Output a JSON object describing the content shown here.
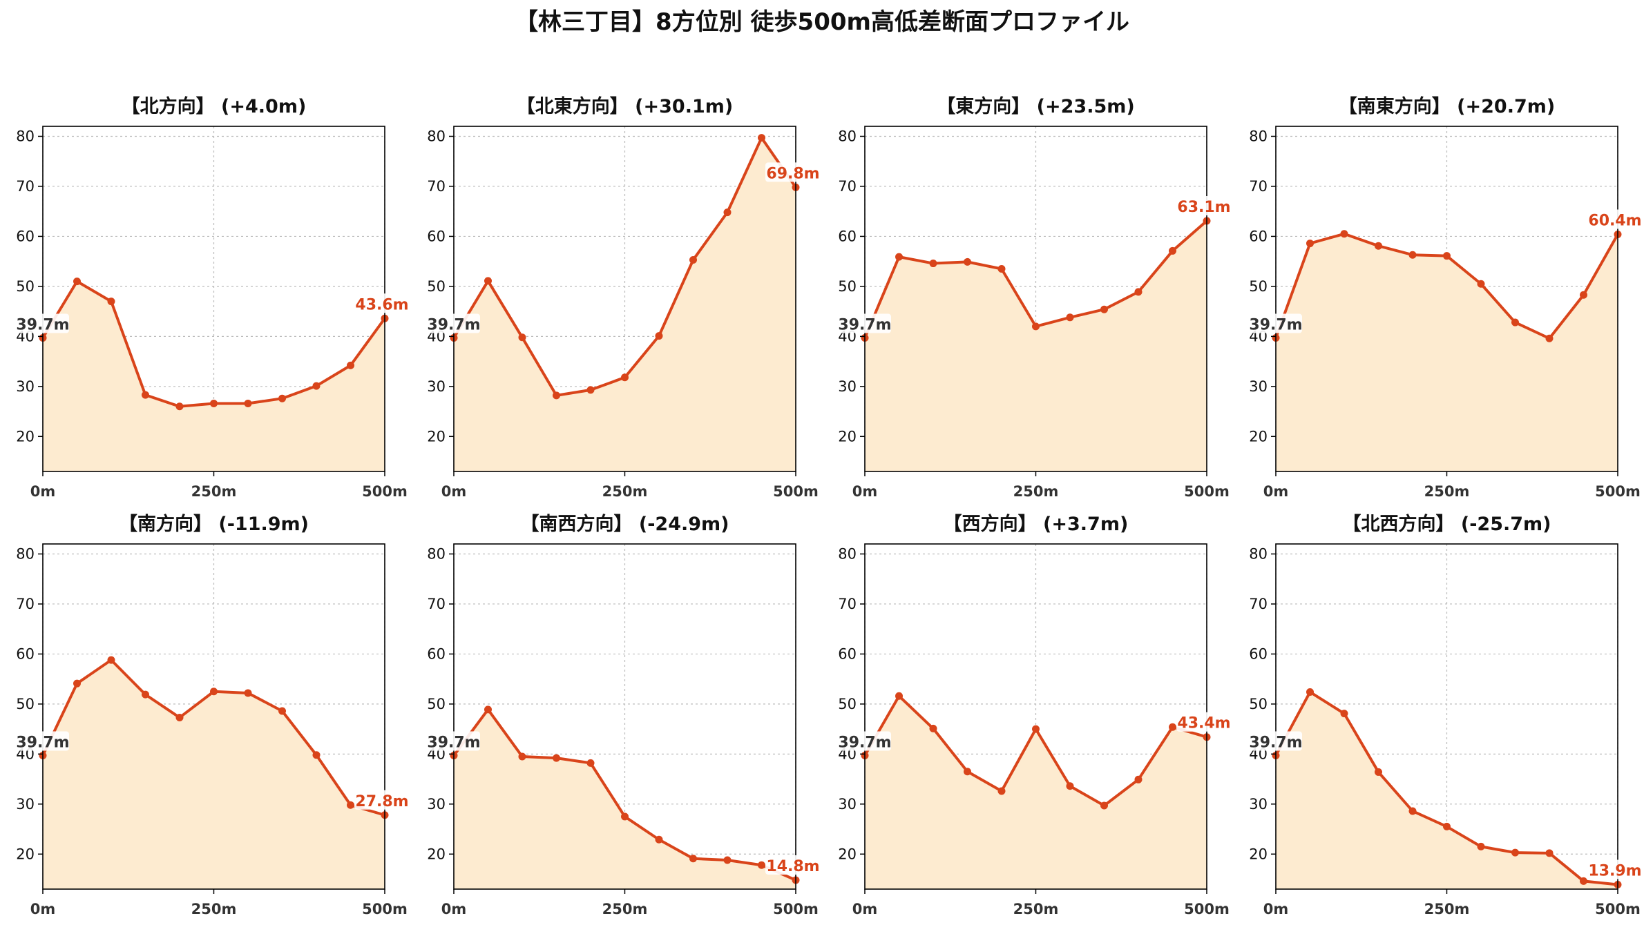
{
  "title": "【林三丁目】8方位別 徒歩500m高低差断面プロファイル",
  "colors": {
    "line": "#d9441a",
    "fill": "#fdebd0",
    "start_label": "#333333",
    "end_label": "#d9441a",
    "grid": "#bbbbbb",
    "axis": "#000000"
  },
  "chart_data": [
    {
      "type": "area",
      "title": "【北方向】 (+4.0m)",
      "x": [
        0,
        50,
        100,
        150,
        200,
        250,
        300,
        350,
        400,
        450,
        500
      ],
      "y": [
        39.7,
        51.0,
        47.0,
        28.3,
        26.0,
        26.6,
        26.6,
        27.6,
        30.1,
        34.2,
        43.6
      ],
      "x_ticks": [
        "0m",
        "250m",
        "500m"
      ],
      "y_ticks": [
        20,
        30,
        40,
        50,
        60,
        70,
        80
      ],
      "xlim": [
        0,
        500
      ],
      "ylim": [
        13,
        82
      ],
      "start_label": "39.7m",
      "end_label": "43.6m",
      "grid": true
    },
    {
      "type": "area",
      "title": "【北東方向】 (+30.1m)",
      "x": [
        0,
        50,
        100,
        150,
        200,
        250,
        300,
        350,
        400,
        450,
        500
      ],
      "y": [
        39.7,
        51.1,
        39.8,
        28.2,
        29.3,
        31.8,
        40.1,
        55.3,
        64.8,
        79.7,
        69.8
      ],
      "x_ticks": [
        "0m",
        "250m",
        "500m"
      ],
      "y_ticks": [
        20,
        30,
        40,
        50,
        60,
        70,
        80
      ],
      "xlim": [
        0,
        500
      ],
      "ylim": [
        13,
        82
      ],
      "start_label": "39.7m",
      "end_label": "69.8m",
      "grid": true
    },
    {
      "type": "area",
      "title": "【東方向】 (+23.5m)",
      "x": [
        0,
        50,
        100,
        150,
        200,
        250,
        300,
        350,
        400,
        450,
        500
      ],
      "y": [
        39.7,
        55.9,
        54.6,
        54.9,
        53.5,
        42.0,
        43.8,
        45.4,
        48.9,
        57.1,
        63.1
      ],
      "x_ticks": [
        "0m",
        "250m",
        "500m"
      ],
      "y_ticks": [
        20,
        30,
        40,
        50,
        60,
        70,
        80
      ],
      "xlim": [
        0,
        500
      ],
      "ylim": [
        13,
        82
      ],
      "start_label": "39.7m",
      "end_label": "63.1m",
      "grid": true
    },
    {
      "type": "area",
      "title": "【南東方向】 (+20.7m)",
      "x": [
        0,
        50,
        100,
        150,
        200,
        250,
        300,
        350,
        400,
        450,
        500
      ],
      "y": [
        39.7,
        58.6,
        60.5,
        58.1,
        56.3,
        56.1,
        50.5,
        42.8,
        39.6,
        48.3,
        60.4
      ],
      "x_ticks": [
        "0m",
        "250m",
        "500m"
      ],
      "y_ticks": [
        20,
        30,
        40,
        50,
        60,
        70,
        80
      ],
      "xlim": [
        0,
        500
      ],
      "ylim": [
        13,
        82
      ],
      "start_label": "39.7m",
      "end_label": "60.4m",
      "grid": true
    },
    {
      "type": "area",
      "title": "【南方向】 (-11.9m)",
      "x": [
        0,
        50,
        100,
        150,
        200,
        250,
        300,
        350,
        400,
        450,
        500
      ],
      "y": [
        39.7,
        54.1,
        58.8,
        51.9,
        47.3,
        52.5,
        52.2,
        48.6,
        39.8,
        29.8,
        27.8
      ],
      "x_ticks": [
        "0m",
        "250m",
        "500m"
      ],
      "y_ticks": [
        20,
        30,
        40,
        50,
        60,
        70,
        80
      ],
      "xlim": [
        0,
        500
      ],
      "ylim": [
        13,
        82
      ],
      "start_label": "39.7m",
      "end_label": "27.8m",
      "grid": true
    },
    {
      "type": "area",
      "title": "【南西方向】 (-24.9m)",
      "x": [
        0,
        50,
        100,
        150,
        200,
        250,
        300,
        350,
        400,
        450,
        500
      ],
      "y": [
        39.7,
        48.9,
        39.5,
        39.2,
        38.2,
        27.5,
        22.9,
        19.1,
        18.8,
        17.8,
        14.8
      ],
      "x_ticks": [
        "0m",
        "250m",
        "500m"
      ],
      "y_ticks": [
        20,
        30,
        40,
        50,
        60,
        70,
        80
      ],
      "xlim": [
        0,
        500
      ],
      "ylim": [
        13,
        82
      ],
      "start_label": "39.7m",
      "end_label": "14.8m",
      "grid": true
    },
    {
      "type": "area",
      "title": "【西方向】 (+3.7m)",
      "x": [
        0,
        50,
        100,
        150,
        200,
        250,
        300,
        350,
        400,
        450,
        500
      ],
      "y": [
        39.7,
        51.6,
        45.1,
        36.5,
        32.6,
        45.0,
        33.6,
        29.7,
        34.9,
        45.4,
        43.4
      ],
      "x_ticks": [
        "0m",
        "250m",
        "500m"
      ],
      "y_ticks": [
        20,
        30,
        40,
        50,
        60,
        70,
        80
      ],
      "xlim": [
        0,
        500
      ],
      "ylim": [
        13,
        82
      ],
      "start_label": "39.7m",
      "end_label": "43.4m",
      "grid": true
    },
    {
      "type": "area",
      "title": "【北西方向】 (-25.7m)",
      "x": [
        0,
        50,
        100,
        150,
        200,
        250,
        300,
        350,
        400,
        450,
        500
      ],
      "y": [
        39.7,
        52.4,
        48.1,
        36.4,
        28.6,
        25.5,
        21.5,
        20.3,
        20.2,
        14.6,
        13.9
      ],
      "x_ticks": [
        "0m",
        "250m",
        "500m"
      ],
      "y_ticks": [
        20,
        30,
        40,
        50,
        60,
        70,
        80
      ],
      "xlim": [
        0,
        500
      ],
      "ylim": [
        13,
        82
      ],
      "start_label": "39.7m",
      "end_label": "13.9m",
      "grid": true
    }
  ]
}
